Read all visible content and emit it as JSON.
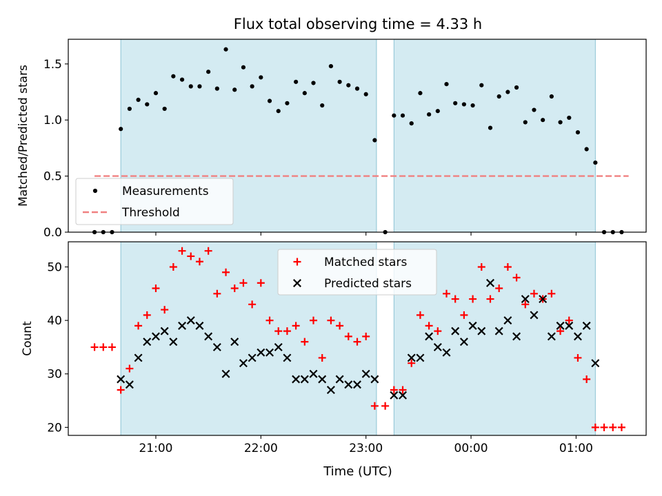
{
  "chart_data": {
    "title": "Flux total observing time = 4.33 h",
    "xlabel": "Time (UTC)",
    "x_ticks": [
      "21:00",
      "22:00",
      "23:00",
      "00:00",
      "01:00"
    ],
    "observing_windows": [
      [
        "20:40",
        "23:06"
      ],
      [
        "23:16",
        "01:11"
      ]
    ],
    "panels": [
      {
        "type": "scatter",
        "ylabel": "Matched/Predicted stars",
        "ylim": [
          0,
          1.72
        ],
        "y_ticks": [
          "0.0",
          "0.5",
          "1.0",
          "1.5"
        ],
        "legend": {
          "placement": "lower-left",
          "entries": [
            "Measurements",
            "Threshold"
          ]
        },
        "threshold": {
          "name": "Threshold",
          "value": 0.5,
          "x_range": [
            "20:25",
            "01:30"
          ],
          "color": "#f08080"
        },
        "series": [
          {
            "name": "Measurements",
            "marker": "dot",
            "color": "#000000",
            "points": [
              [
                "20:25",
                0
              ],
              [
                "20:30",
                0
              ],
              [
                "20:35",
                0
              ],
              [
                "20:40",
                0.92
              ],
              [
                "20:45",
                1.1
              ],
              [
                "20:50",
                1.18
              ],
              [
                "20:55",
                1.14
              ],
              [
                "21:00",
                1.24
              ],
              [
                "21:05",
                1.1
              ],
              [
                "21:10",
                1.39
              ],
              [
                "21:15",
                1.36
              ],
              [
                "21:20",
                1.3
              ],
              [
                "21:25",
                1.3
              ],
              [
                "21:30",
                1.43
              ],
              [
                "21:35",
                1.28
              ],
              [
                "21:40",
                1.63
              ],
              [
                "21:45",
                1.27
              ],
              [
                "21:50",
                1.47
              ],
              [
                "21:55",
                1.3
              ],
              [
                "22:00",
                1.38
              ],
              [
                "22:05",
                1.17
              ],
              [
                "22:10",
                1.08
              ],
              [
                "22:15",
                1.15
              ],
              [
                "22:20",
                1.34
              ],
              [
                "22:25",
                1.24
              ],
              [
                "22:30",
                1.33
              ],
              [
                "22:35",
                1.13
              ],
              [
                "22:40",
                1.48
              ],
              [
                "22:45",
                1.34
              ],
              [
                "22:50",
                1.31
              ],
              [
                "22:55",
                1.28
              ],
              [
                "23:00",
                1.23
              ],
              [
                "23:05",
                0.82
              ],
              [
                "23:11",
                0
              ],
              [
                "23:16",
                1.04
              ],
              [
                "23:21",
                1.04
              ],
              [
                "23:26",
                0.97
              ],
              [
                "23:31",
                1.24
              ],
              [
                "23:36",
                1.05
              ],
              [
                "23:41",
                1.08
              ],
              [
                "23:46",
                1.32
              ],
              [
                "23:51",
                1.15
              ],
              [
                "23:56",
                1.14
              ],
              [
                "00:01",
                1.13
              ],
              [
                "00:06",
                1.31
              ],
              [
                "00:11",
                0.93
              ],
              [
                "00:16",
                1.21
              ],
              [
                "00:21",
                1.25
              ],
              [
                "00:26",
                1.29
              ],
              [
                "00:31",
                0.98
              ],
              [
                "00:36",
                1.09
              ],
              [
                "00:41",
                1.0
              ],
              [
                "00:46",
                1.21
              ],
              [
                "00:51",
                0.98
              ],
              [
                "00:56",
                1.02
              ],
              [
                "01:01",
                0.89
              ],
              [
                "01:06",
                0.74
              ],
              [
                "01:11",
                0.62
              ],
              [
                "01:16",
                0
              ],
              [
                "01:21",
                0
              ],
              [
                "01:26",
                0
              ]
            ]
          }
        ]
      },
      {
        "type": "scatter",
        "ylabel": "Count",
        "ylim": [
          18.5,
          54.7
        ],
        "y_ticks": [
          "20",
          "30",
          "40",
          "50"
        ],
        "legend": {
          "placement": "upper-center",
          "entries": [
            "Matched stars",
            "Predicted stars"
          ]
        },
        "series": [
          {
            "name": "Matched stars",
            "marker": "plus",
            "color": "#ff0000",
            "points": [
              [
                "20:25",
                35
              ],
              [
                "20:30",
                35
              ],
              [
                "20:35",
                35
              ],
              [
                "20:40",
                27
              ],
              [
                "20:45",
                31
              ],
              [
                "20:50",
                39
              ],
              [
                "20:55",
                41
              ],
              [
                "21:00",
                46
              ],
              [
                "21:05",
                42
              ],
              [
                "21:10",
                50
              ],
              [
                "21:15",
                53
              ],
              [
                "21:20",
                52
              ],
              [
                "21:25",
                51
              ],
              [
                "21:30",
                53
              ],
              [
                "21:35",
                45
              ],
              [
                "21:40",
                49
              ],
              [
                "21:45",
                46
              ],
              [
                "21:50",
                47
              ],
              [
                "21:55",
                43
              ],
              [
                "22:00",
                47
              ],
              [
                "22:05",
                40
              ],
              [
                "22:10",
                38
              ],
              [
                "22:15",
                38
              ],
              [
                "22:20",
                39
              ],
              [
                "22:25",
                36
              ],
              [
                "22:30",
                40
              ],
              [
                "22:35",
                33
              ],
              [
                "22:40",
                40
              ],
              [
                "22:45",
                39
              ],
              [
                "22:50",
                37
              ],
              [
                "22:55",
                36
              ],
              [
                "23:00",
                37
              ],
              [
                "23:05",
                24
              ],
              [
                "23:11",
                24
              ],
              [
                "23:16",
                27
              ],
              [
                "23:21",
                27
              ],
              [
                "23:26",
                32
              ],
              [
                "23:31",
                41
              ],
              [
                "23:36",
                39
              ],
              [
                "23:41",
                38
              ],
              [
                "23:46",
                45
              ],
              [
                "23:51",
                44
              ],
              [
                "23:56",
                41
              ],
              [
                "00:01",
                44
              ],
              [
                "00:06",
                50
              ],
              [
                "00:11",
                44
              ],
              [
                "00:16",
                46
              ],
              [
                "00:21",
                50
              ],
              [
                "00:26",
                48
              ],
              [
                "00:31",
                43
              ],
              [
                "00:36",
                45
              ],
              [
                "00:41",
                44
              ],
              [
                "00:46",
                45
              ],
              [
                "00:51",
                38
              ],
              [
                "00:56",
                40
              ],
              [
                "01:01",
                33
              ],
              [
                "01:06",
                29
              ],
              [
                "01:11",
                20
              ],
              [
                "01:16",
                20
              ],
              [
                "01:21",
                20
              ],
              [
                "01:26",
                20
              ]
            ]
          },
          {
            "name": "Predicted stars",
            "marker": "x",
            "color": "#000000",
            "points": [
              [
                "20:40",
                29
              ],
              [
                "20:45",
                28
              ],
              [
                "20:50",
                33
              ],
              [
                "20:55",
                36
              ],
              [
                "21:00",
                37
              ],
              [
                "21:05",
                38
              ],
              [
                "21:10",
                36
              ],
              [
                "21:15",
                39
              ],
              [
                "21:20",
                40
              ],
              [
                "21:25",
                39
              ],
              [
                "21:30",
                37
              ],
              [
                "21:35",
                35
              ],
              [
                "21:40",
                30
              ],
              [
                "21:45",
                36
              ],
              [
                "21:50",
                32
              ],
              [
                "21:55",
                33
              ],
              [
                "22:00",
                34
              ],
              [
                "22:05",
                34
              ],
              [
                "22:10",
                35
              ],
              [
                "22:15",
                33
              ],
              [
                "22:20",
                29
              ],
              [
                "22:25",
                29
              ],
              [
                "22:30",
                30
              ],
              [
                "22:35",
                29
              ],
              [
                "22:40",
                27
              ],
              [
                "22:45",
                29
              ],
              [
                "22:50",
                28
              ],
              [
                "22:55",
                28
              ],
              [
                "23:00",
                30
              ],
              [
                "23:05",
                29
              ],
              [
                "23:16",
                26
              ],
              [
                "23:21",
                26
              ],
              [
                "23:26",
                33
              ],
              [
                "23:31",
                33
              ],
              [
                "23:36",
                37
              ],
              [
                "23:41",
                35
              ],
              [
                "23:46",
                34
              ],
              [
                "23:51",
                38
              ],
              [
                "23:56",
                36
              ],
              [
                "00:01",
                39
              ],
              [
                "00:06",
                38
              ],
              [
                "00:11",
                47
              ],
              [
                "00:16",
                38
              ],
              [
                "00:21",
                40
              ],
              [
                "00:26",
                37
              ],
              [
                "00:31",
                44
              ],
              [
                "00:36",
                41
              ],
              [
                "00:41",
                44
              ],
              [
                "00:46",
                37
              ],
              [
                "00:51",
                39
              ],
              [
                "00:56",
                39
              ],
              [
                "01:01",
                37
              ],
              [
                "01:06",
                39
              ],
              [
                "01:11",
                32
              ]
            ]
          }
        ]
      }
    ],
    "colors": {
      "window_fill": "#add8e6",
      "window_edge": "#8cc3d4"
    }
  }
}
